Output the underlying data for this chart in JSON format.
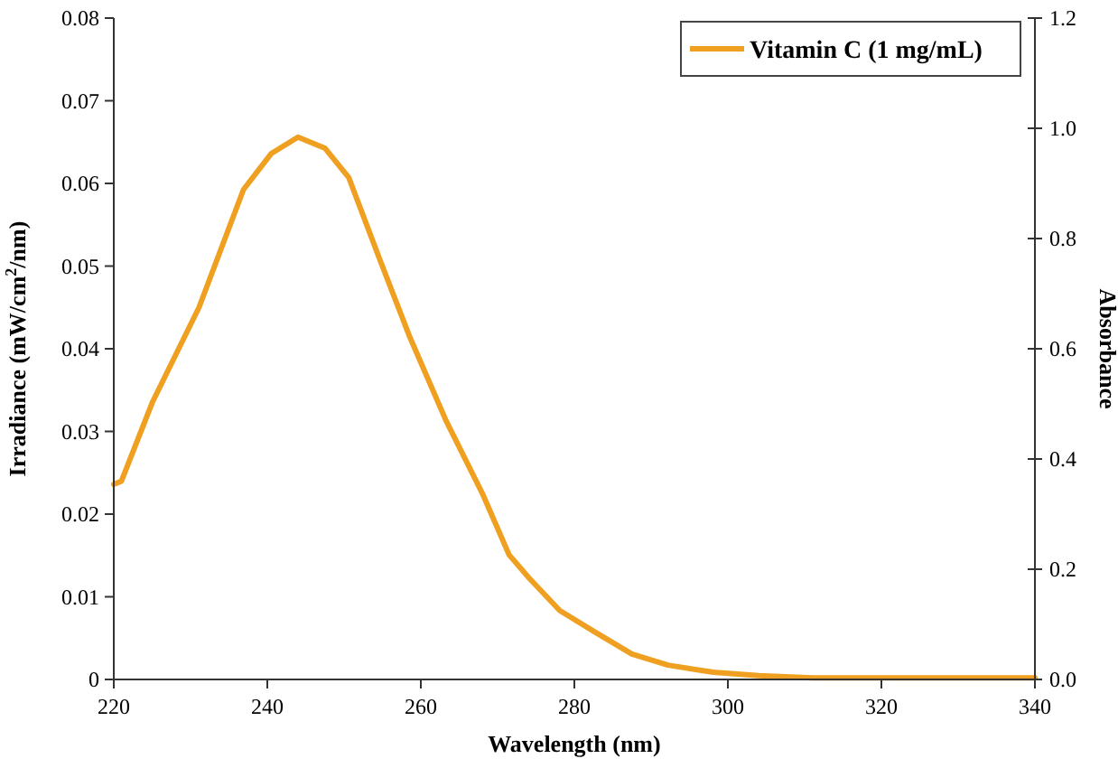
{
  "chart_data": {
    "type": "line",
    "xlabel": "Wavelength (nm)",
    "ylabel": "Irradiance (mW/cm$^{2}$/nm)",
    "y2label": "Absorbance",
    "xlim": [
      220,
      340
    ],
    "xticks": [
      220,
      240,
      260,
      280,
      300,
      320,
      340
    ],
    "ylim": [
      0,
      0.08
    ],
    "yticks": [
      0,
      0.01,
      0.02,
      0.03,
      0.04,
      0.05,
      0.06,
      0.07,
      0.08
    ],
    "y2lim": [
      0,
      1.2
    ],
    "y2ticks": [
      {
        "value": 0,
        "label": "0.0"
      },
      {
        "value": 0.2,
        "label": "0.2"
      },
      {
        "value": 0.4,
        "label": "0.4"
      },
      {
        "value": 0.6,
        "label": "0.6"
      },
      {
        "value": 0.8,
        "label": "0.8"
      },
      {
        "value": 1,
        "label": "1.0"
      },
      {
        "value": 1.2,
        "label": "1.2"
      }
    ],
    "legend": "top right",
    "grid": false,
    "marker": "none",
    "line_style": "solid",
    "series": [
      {
        "name": "Vitamin C (1 mg/mL)",
        "color": "#f0a020",
        "axis": "y2",
        "x": [
          220,
          221,
          225,
          231.1,
          236.9,
          240.5,
          244,
          247.5,
          250.6,
          254.6,
          258.6,
          263.3,
          268,
          271.5,
          274.1,
          278.1,
          282.8,
          287.5,
          292.2,
          298.1,
          304,
          311,
          322.8,
          340
        ],
        "values": [
          0.354,
          0.36,
          0.502,
          0.675,
          0.889,
          0.954,
          0.984,
          0.964,
          0.911,
          0.764,
          0.62,
          0.469,
          0.338,
          0.226,
          0.184,
          0.125,
          0.085,
          0.046,
          0.026,
          0.013,
          0.007,
          0.003,
          0.003,
          0.003
        ]
      }
    ]
  }
}
